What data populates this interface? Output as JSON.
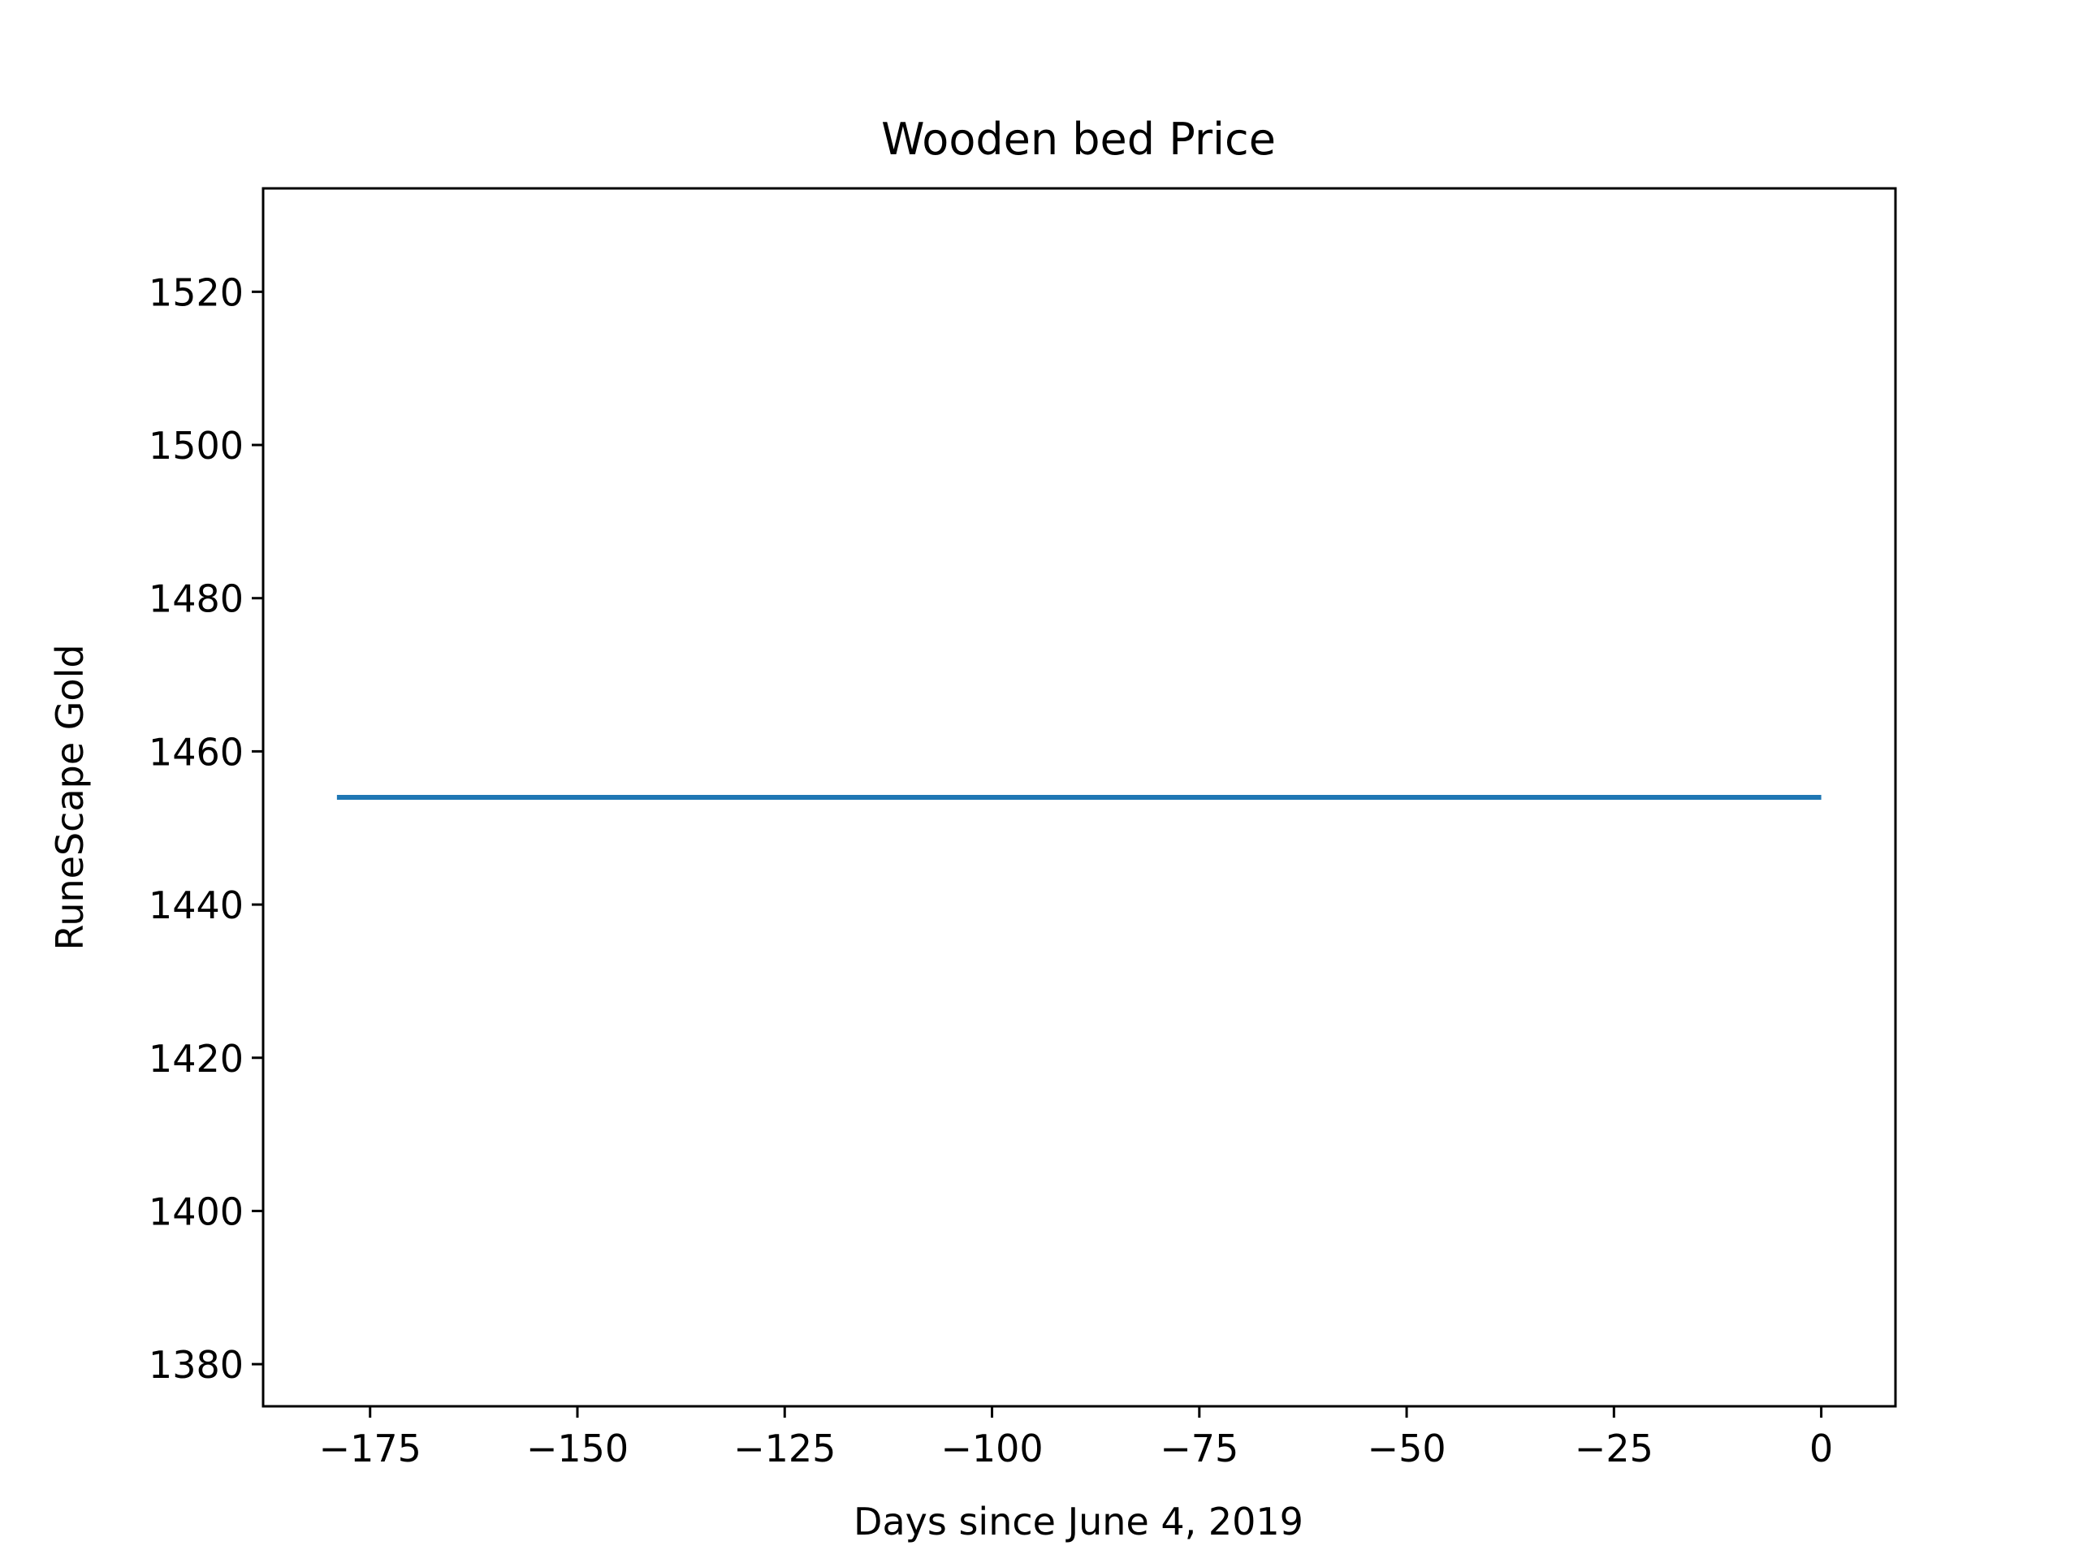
{
  "chart_data": {
    "type": "line",
    "title": "Wooden bed Price",
    "xlabel": "Days since June 4, 2019",
    "ylabel": "RuneScape Gold",
    "xlim": [
      -187.9,
      8.95
    ],
    "ylim": [
      1374.5,
      1533.5
    ],
    "x_ticks": [
      -175,
      -150,
      -125,
      -100,
      -75,
      -50,
      -25,
      0
    ],
    "x_tick_labels": [
      "−175",
      "−150",
      "−125",
      "−100",
      "−75",
      "−50",
      "−25",
      "0"
    ],
    "y_ticks": [
      1380,
      1400,
      1420,
      1440,
      1460,
      1480,
      1500,
      1520
    ],
    "y_tick_labels": [
      "1380",
      "1400",
      "1420",
      "1440",
      "1460",
      "1480",
      "1500",
      "1520"
    ],
    "grid": false,
    "series": [
      {
        "color": "#1f77b4",
        "x": [
          -179,
          0
        ],
        "y": [
          1454,
          1454
        ]
      }
    ]
  }
}
